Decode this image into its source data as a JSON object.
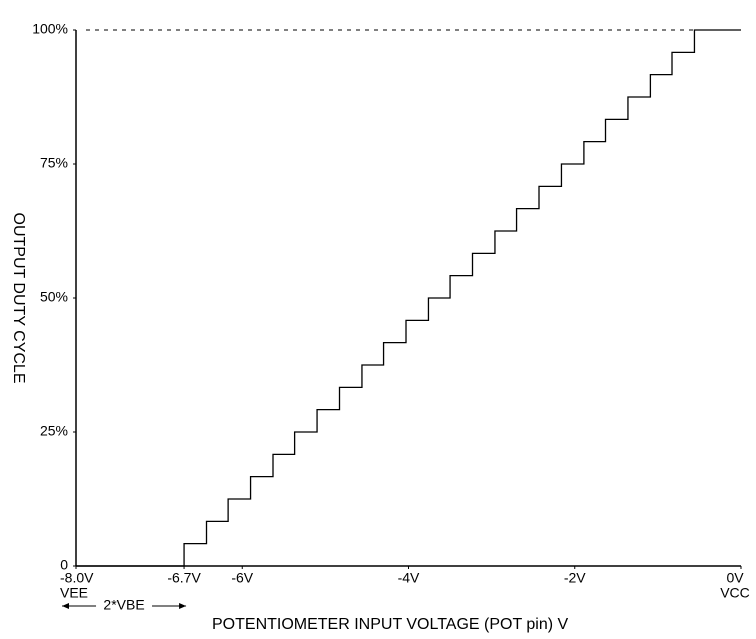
{
  "chart_data": {
    "type": "line",
    "drawstyle": "steps-post",
    "x_label": "POTENTIOMETER INPUT VOLTAGE (POT pin) V",
    "y_label": "OUTPUT DUTY CYCLE",
    "x": [
      -8.0,
      -6.7,
      -6.43,
      -6.17,
      -5.9,
      -5.63,
      -5.37,
      -5.1,
      -4.83,
      -4.56,
      -4.3,
      -4.03,
      -3.76,
      -3.5,
      -3.23,
      -2.96,
      -2.7,
      -2.43,
      -2.16,
      -1.89,
      -1.63,
      -1.36,
      -1.09,
      -0.83,
      -0.56
    ],
    "series": [
      {
        "name": "duty cycle",
        "color": "#000000",
        "values": [
          0,
          4.17,
          8.33,
          12.5,
          16.67,
          20.83,
          25,
          29.17,
          33.33,
          37.5,
          41.67,
          45.83,
          50,
          54.17,
          58.33,
          62.5,
          66.67,
          70.83,
          75,
          79.17,
          83.33,
          87.5,
          91.67,
          95.83,
          100
        ]
      }
    ],
    "reference_line": 100,
    "xlim": [
      -8.0,
      0
    ],
    "ylim": [
      0,
      100
    ],
    "xticks": [
      {
        "value": -8.0,
        "label": "-8.0V"
      },
      {
        "value": -6.7,
        "label": "-6.7V"
      },
      {
        "value": -6,
        "label": "-6V"
      },
      {
        "value": -4,
        "label": "-4V"
      },
      {
        "value": -2,
        "label": "-2V"
      },
      {
        "value": 0,
        "label": "0V"
      }
    ],
    "yticks": [
      0,
      {
        "value": 25,
        "label": "25%"
      },
      {
        "value": 50,
        "label": "50%"
      },
      {
        "value": 75,
        "label": "75%"
      },
      {
        "value": 100,
        "label": "100%"
      }
    ],
    "x_left_sublabel": "VEE",
    "x_right_sublabel": "VCC",
    "span_label": "2*VBE"
  }
}
